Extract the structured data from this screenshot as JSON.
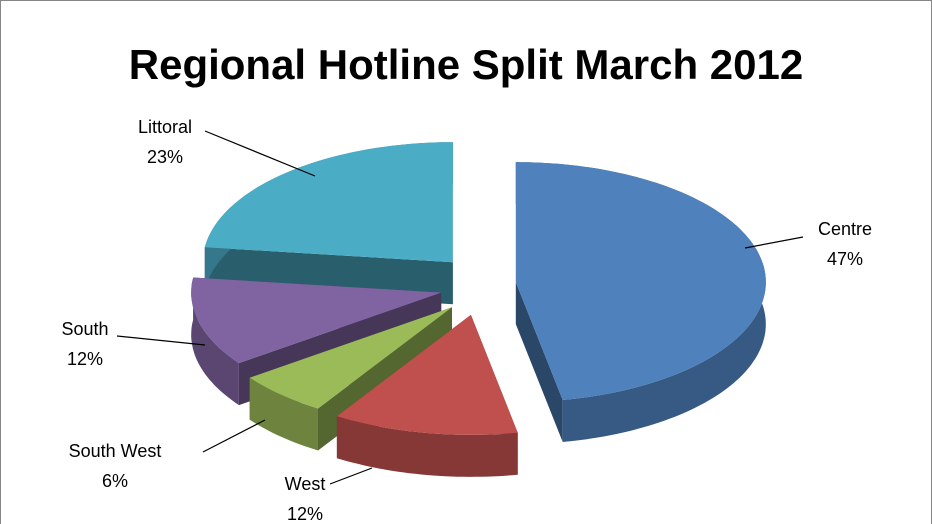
{
  "chart_data": {
    "type": "pie",
    "title": "Regional Hotline Split March 2012",
    "categories": [
      "Centre",
      "West",
      "South West",
      "South",
      "Littoral"
    ],
    "values": [
      47,
      12,
      6,
      12,
      23
    ],
    "value_labels": [
      "47%",
      "12%",
      "6%",
      "12%",
      "23%"
    ],
    "colors": [
      "#4f81bd",
      "#c0504d",
      "#9bbb59",
      "#8064a2",
      "#4bacc6"
    ]
  }
}
